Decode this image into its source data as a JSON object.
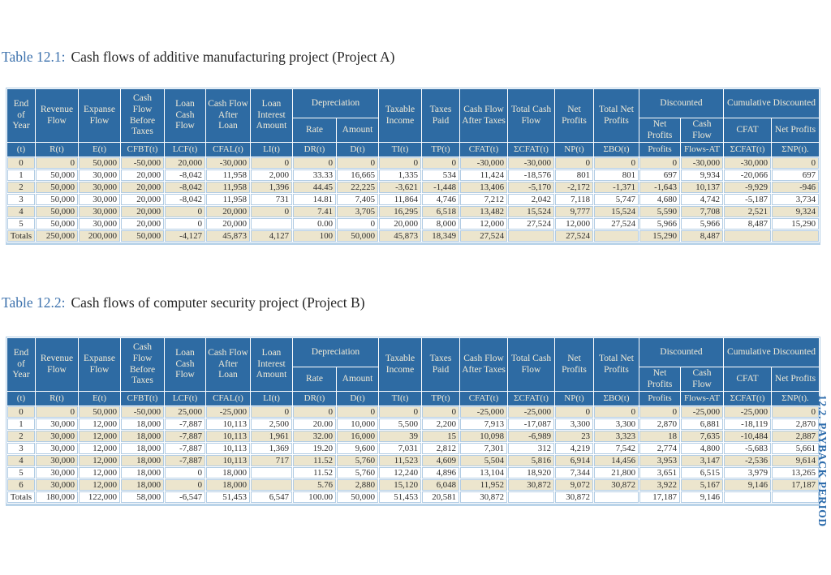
{
  "sidebar_label": "12.2. PAYBACK PERIOD",
  "colors": {
    "header_bg": "#2e6ba3",
    "header_text": "#f0ead6",
    "row_beige": "#ece5cd",
    "row_white": "#ffffff",
    "cell_border": "#b1cce4",
    "caption_blue": "#3d72ad",
    "sidebar_blue": "#2d6cac"
  },
  "table_columns": [
    {
      "label": "End of Year",
      "symbol": "(t)"
    },
    {
      "label": "Revenue Flow",
      "symbol": "R(t)"
    },
    {
      "label": "Expanse Flow",
      "symbol": "E(t)"
    },
    {
      "label": "Cash Flow Before Taxes",
      "symbol": "CFBT(t)"
    },
    {
      "label": "Loan Cash Flow",
      "symbol": "LCF(t)"
    },
    {
      "label": "Cash Flow After Loan",
      "symbol": "CFAL(t)"
    },
    {
      "label": "Loan Interest Amount",
      "symbol": "LI(t)"
    },
    {
      "group": "Depreciation",
      "children": [
        {
          "label": "Rate",
          "symbol": "DR(t)"
        },
        {
          "label": "Amount",
          "symbol": "D(t)"
        }
      ]
    },
    {
      "label": "Taxable Income",
      "symbol": "TI(t)"
    },
    {
      "label": "Taxes Paid",
      "symbol": "TP(t)"
    },
    {
      "label": "Cash Flow After Taxes",
      "symbol": "CFAT(t)"
    },
    {
      "label": "Total Cash Flow",
      "symbol": "ΣCFAT(t)"
    },
    {
      "label": "Net Profits",
      "symbol": "NP(t)"
    },
    {
      "label": "Total Net Profits",
      "symbol": "ΣBO(t)"
    },
    {
      "group": "Discounted",
      "children": [
        {
          "label": "Net Profits",
          "symbol": "Profits"
        },
        {
          "label": "Cash Flow",
          "symbol": "Flows-AT"
        }
      ]
    },
    {
      "group": "Cumulative Discounted",
      "children": [
        {
          "label": "CFAT",
          "symbol": "ΣCFAT(t)"
        },
        {
          "label": "Net Profits",
          "symbol": "ΣNP(t)."
        }
      ]
    }
  ],
  "tables": [
    {
      "caption_label": "Table 12.1:",
      "caption_text": "Cash flows of additive manufacturing project (Project A)",
      "rows": [
        [
          "0",
          "0",
          "50,000",
          "-50,000",
          "20,000",
          "-30,000",
          "0",
          "0",
          "0",
          "0",
          "0",
          "-30,000",
          "-30,000",
          "0",
          "0",
          "0",
          "-30,000",
          "-30,000",
          "0"
        ],
        [
          "1",
          "50,000",
          "30,000",
          "20,000",
          "-8,042",
          "11,958",
          "2,000",
          "33.33",
          "16,665",
          "1,335",
          "534",
          "11,424",
          "-18,576",
          "801",
          "801",
          "697",
          "9,934",
          "-20,066",
          "697"
        ],
        [
          "2",
          "50,000",
          "30,000",
          "20,000",
          "-8,042",
          "11,958",
          "1,396",
          "44.45",
          "22,225",
          "-3,621",
          "-1,448",
          "13,406",
          "-5,170",
          "-2,172",
          "-1,371",
          "-1,643",
          "10,137",
          "-9,929",
          "-946"
        ],
        [
          "3",
          "50,000",
          "30,000",
          "20,000",
          "-8,042",
          "11,958",
          "731",
          "14.81",
          "7,405",
          "11,864",
          "4,746",
          "7,212",
          "2,042",
          "7,118",
          "5,747",
          "4,680",
          "4,742",
          "-5,187",
          "3,734"
        ],
        [
          "4",
          "50,000",
          "30,000",
          "20,000",
          "0",
          "20,000",
          "0",
          "7.41",
          "3,705",
          "16,295",
          "6,518",
          "13,482",
          "15,524",
          "9,777",
          "15,524",
          "5,590",
          "7,708",
          "2,521",
          "9,324"
        ],
        [
          "5",
          "50,000",
          "30,000",
          "20,000",
          "0",
          "20,000",
          "",
          "0.00",
          "0",
          "20,000",
          "8,000",
          "12,000",
          "27,524",
          "12,000",
          "27,524",
          "5,966",
          "5,966",
          "8,487",
          "15,290"
        ],
        [
          "Totals",
          "250,000",
          "200,000",
          "50,000",
          "-4,127",
          "45,873",
          "4,127",
          "100",
          "50,000",
          "45,873",
          "18,349",
          "27,524",
          "",
          "27,524",
          "",
          "15,290",
          "8,487",
          "",
          ""
        ]
      ]
    },
    {
      "caption_label": "Table 12.2:",
      "caption_text": "Cash flows of computer security project (Project B)",
      "rows": [
        [
          "0",
          "0",
          "50,000",
          "-50,000",
          "25,000",
          "-25,000",
          "0",
          "0",
          "0",
          "0",
          "0",
          "-25,000",
          "-25,000",
          "0",
          "0",
          "0",
          "-25,000",
          "-25,000",
          "0"
        ],
        [
          "1",
          "30,000",
          "12,000",
          "18,000",
          "-7,887",
          "10,113",
          "2,500",
          "20.00",
          "10,000",
          "5,500",
          "2,200",
          "7,913",
          "-17,087",
          "3,300",
          "3,300",
          "2,870",
          "6,881",
          "-18,119",
          "2,870"
        ],
        [
          "2",
          "30,000",
          "12,000",
          "18,000",
          "-7,887",
          "10,113",
          "1,961",
          "32.00",
          "16,000",
          "39",
          "15",
          "10,098",
          "-6,989",
          "23",
          "3,323",
          "18",
          "7,635",
          "-10,484",
          "2,887"
        ],
        [
          "3",
          "30,000",
          "12,000",
          "18,000",
          "-7,887",
          "10,113",
          "1,369",
          "19.20",
          "9,600",
          "7,031",
          "2,812",
          "7,301",
          "312",
          "4,219",
          "7,542",
          "2,774",
          "4,800",
          "-5,683",
          "5,661"
        ],
        [
          "4",
          "30,000",
          "12,000",
          "18,000",
          "-7,887",
          "10,113",
          "717",
          "11.52",
          "5,760",
          "11,523",
          "4,609",
          "5,504",
          "5,816",
          "6,914",
          "14,456",
          "3,953",
          "3,147",
          "-2,536",
          "9,614"
        ],
        [
          "5",
          "30,000",
          "12,000",
          "18,000",
          "0",
          "18,000",
          "",
          "11.52",
          "5,760",
          "12,240",
          "4,896",
          "13,104",
          "18,920",
          "7,344",
          "21,800",
          "3,651",
          "6,515",
          "3,979",
          "13,265"
        ],
        [
          "6",
          "30,000",
          "12,000",
          "18,000",
          "0",
          "18,000",
          "",
          "5.76",
          "2,880",
          "15,120",
          "6,048",
          "11,952",
          "30,872",
          "9,072",
          "30,872",
          "3,922",
          "5,167",
          "9,146",
          "17,187"
        ],
        [
          "Totals",
          "180,000",
          "122,000",
          "58,000",
          "-6,547",
          "51,453",
          "6,547",
          "100.00",
          "50,000",
          "51,453",
          "20,581",
          "30,872",
          "",
          "30,872",
          "",
          "17,187",
          "9,146",
          "",
          ""
        ]
      ]
    }
  ]
}
